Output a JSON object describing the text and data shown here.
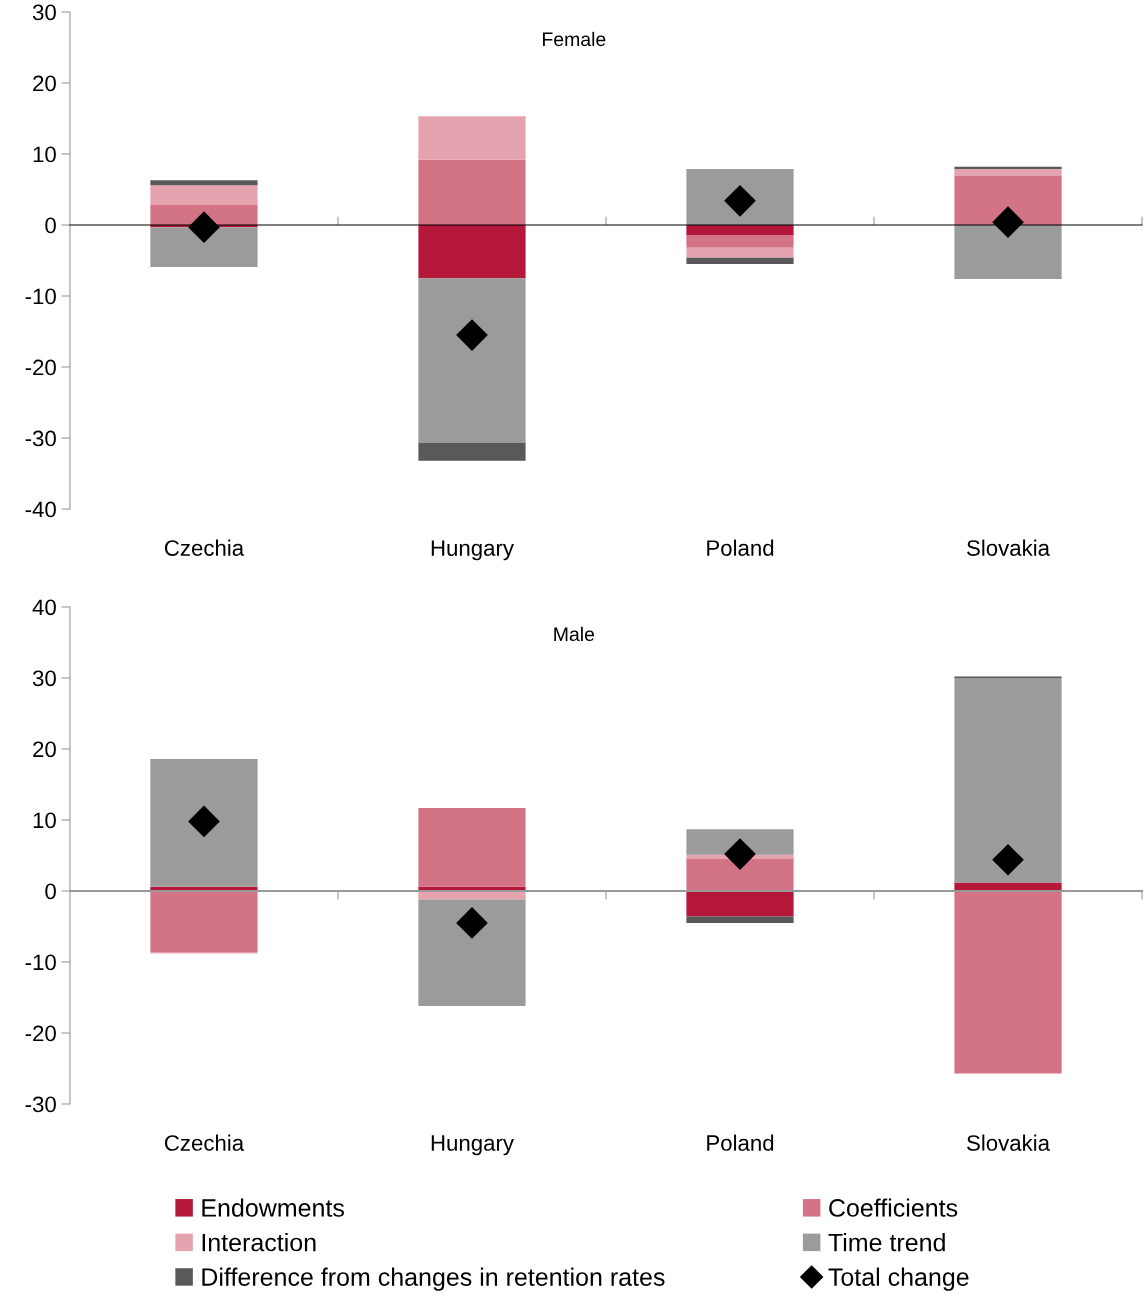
{
  "chart_data": [
    {
      "type": "bar",
      "stacked": true,
      "title": "Female",
      "categories": [
        "Czechia",
        "Hungary",
        "Poland",
        "Slovakia"
      ],
      "ylim": [
        -40,
        30
      ],
      "yticks": [
        -40,
        -30,
        -20,
        -10,
        0,
        10,
        20,
        30
      ],
      "series": [
        {
          "color": "#b5173a",
          "values": [
            -0.3,
            -7.5,
            -1.4,
            0
          ]
        },
        {
          "color": "#d37386",
          "values": [
            2.8,
            9.2,
            -1.8,
            6.9
          ]
        },
        {
          "color": "#e4a3af",
          "values": [
            2.8,
            6.1,
            -1.4,
            1.0
          ]
        },
        {
          "color": "#9b9b9b",
          "values": [
            -5.6,
            -23.2,
            7.9,
            -7.6
          ]
        },
        {
          "color": "#595959",
          "values": [
            0.7,
            -2.5,
            -0.9,
            0.3
          ]
        },
        {
          "type": "scatter",
          "marker": "diamond",
          "color": "#000000",
          "values": [
            -0.3,
            -15.5,
            3.4,
            0.4
          ]
        }
      ]
    },
    {
      "type": "bar",
      "stacked": true,
      "title": "Male",
      "categories": [
        "Czechia",
        "Hungary",
        "Poland",
        "Slovakia"
      ],
      "ylim": [
        -30,
        40
      ],
      "yticks": [
        -30,
        -20,
        -10,
        0,
        10,
        20,
        30,
        40
      ],
      "legend": "bottom",
      "series": [
        {
          "name": "Endowments",
          "color": "#b5173a",
          "values": [
            0.6,
            0.6,
            -3.6,
            1.2
          ]
        },
        {
          "name": "Coefficients",
          "color": "#d37386",
          "values": [
            -8.6,
            11.1,
            4.5,
            -25.7
          ]
        },
        {
          "name": "Interaction",
          "color": "#e4a3af",
          "values": [
            -0.2,
            -1.2,
            0.6,
            0
          ]
        },
        {
          "name": "Time trend",
          "color": "#9b9b9b",
          "values": [
            18.0,
            -15.0,
            3.6,
            28.8
          ]
        },
        {
          "name": "Difference from changes in retention rates",
          "color": "#595959",
          "values": [
            0,
            0,
            -0.9,
            0.2
          ]
        },
        {
          "name": "Total change",
          "type": "scatter",
          "marker": "diamond",
          "color": "#000000",
          "values": [
            9.8,
            -4.5,
            5.2,
            4.4
          ]
        }
      ]
    }
  ]
}
